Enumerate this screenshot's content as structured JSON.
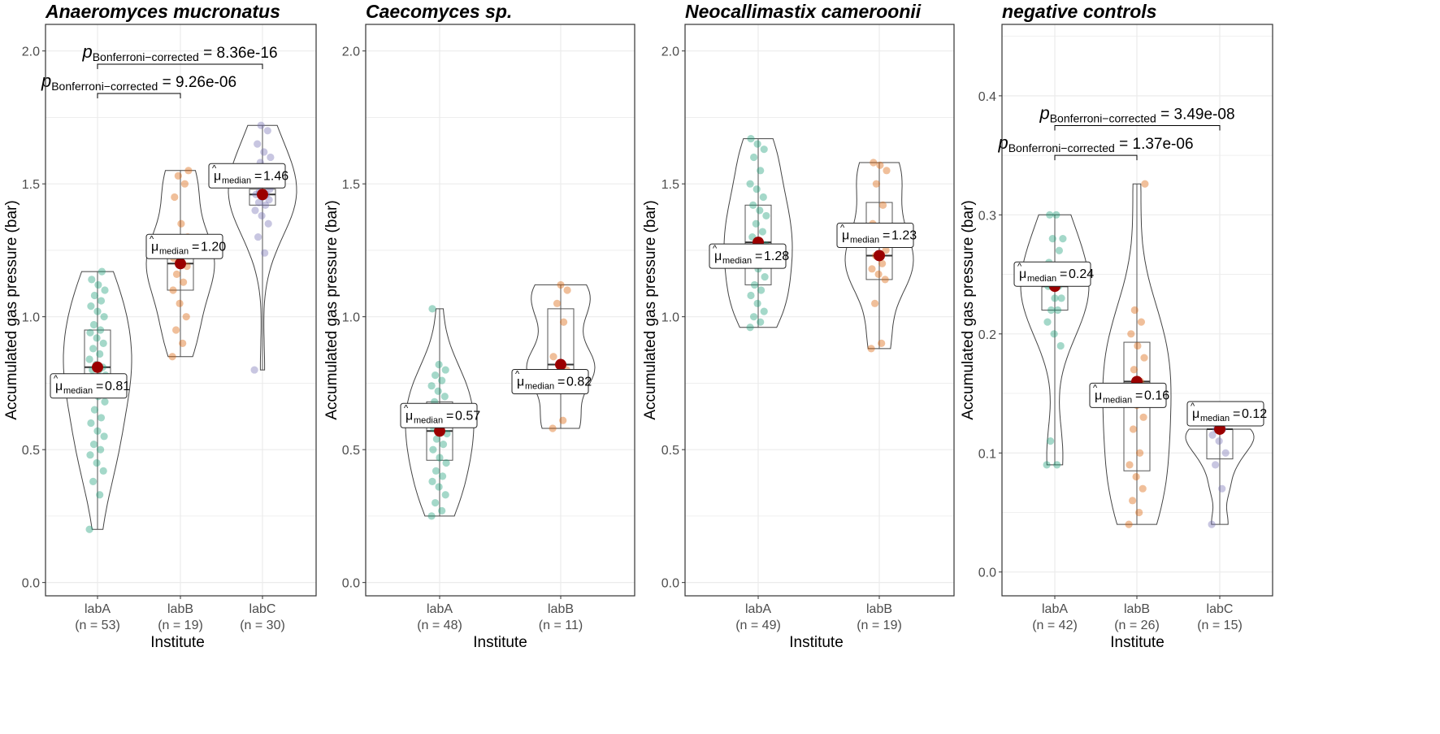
{
  "x_axis_title": "Institute",
  "y_axis_title": "Accumulated gas pressure (bar)",
  "pvalue_label": "Bonferroni−corrected",
  "median_symbol": "μ",
  "median_subscript": "median",
  "colors": {
    "labA": "#1b9e77",
    "labB": "#d95f02",
    "labC": "#7570b3",
    "median_point": "#9b0000",
    "grid": "#ebebeb",
    "axis_text": "#4d4d4d"
  },
  "chart_data": [
    {
      "type": "violin-box-jitter",
      "title": "Anaeromyces mucronatus",
      "ylim": [
        -0.05,
        2.1
      ],
      "yticks": [
        0.0,
        0.5,
        1.0,
        1.5,
        2.0
      ],
      "ytick_labels": [
        "0.0",
        "0.5",
        "1.0",
        "1.5",
        "2.0"
      ],
      "groups": [
        {
          "name": "labA",
          "n_label": "(n = 53)",
          "median": 0.81,
          "median_label": "0.81",
          "q1": 0.72,
          "q3": 0.95,
          "min": 0.2,
          "max": 1.17,
          "points": [
            0.2,
            0.33,
            0.38,
            0.42,
            0.45,
            0.48,
            0.5,
            0.52,
            0.55,
            0.57,
            0.6,
            0.62,
            0.65,
            0.68,
            0.7,
            0.72,
            0.74,
            0.76,
            0.78,
            0.8,
            0.8,
            0.81,
            0.82,
            0.84,
            0.86,
            0.88,
            0.9,
            0.92,
            0.94,
            0.95,
            0.97,
            1.0,
            1.02,
            1.04,
            1.06,
            1.08,
            1.1,
            1.12,
            1.14,
            1.17
          ]
        },
        {
          "name": "labB",
          "n_label": "(n = 19)",
          "median": 1.2,
          "median_label": "1.20",
          "q1": 1.1,
          "q3": 1.28,
          "min": 0.85,
          "max": 1.55,
          "points": [
            0.85,
            0.9,
            0.95,
            1.0,
            1.05,
            1.1,
            1.13,
            1.16,
            1.19,
            1.2,
            1.22,
            1.25,
            1.28,
            1.3,
            1.35,
            1.45,
            1.5,
            1.53,
            1.55
          ]
        },
        {
          "name": "labC",
          "n_label": "(n = 30)",
          "median": 1.46,
          "median_label": "1.46",
          "q1": 1.42,
          "q3": 1.48,
          "min": 0.8,
          "max": 1.72,
          "points": [
            0.8,
            1.24,
            1.3,
            1.35,
            1.38,
            1.4,
            1.42,
            1.43,
            1.44,
            1.45,
            1.46,
            1.46,
            1.47,
            1.48,
            1.5,
            1.52,
            1.55,
            1.58,
            1.6,
            1.62,
            1.65,
            1.7,
            1.72
          ]
        }
      ],
      "brackets": [
        {
          "from": "labA",
          "to": "labB",
          "y": 1.84,
          "p": "9.26e-06"
        },
        {
          "from": "labA",
          "to": "labC",
          "y": 1.95,
          "p": "8.36e-16"
        }
      ]
    },
    {
      "type": "violin-box-jitter",
      "title": "Caecomyces sp.",
      "ylim": [
        -0.05,
        2.1
      ],
      "yticks": [
        0.0,
        0.5,
        1.0,
        1.5,
        2.0
      ],
      "ytick_labels": [
        "0.0",
        "0.5",
        "1.0",
        "1.5",
        "2.0"
      ],
      "groups": [
        {
          "name": "labA",
          "n_label": "(n = 48)",
          "median": 0.57,
          "median_label": "0.57",
          "q1": 0.46,
          "q3": 0.68,
          "min": 0.25,
          "max": 1.03,
          "points": [
            0.25,
            0.27,
            0.3,
            0.33,
            0.36,
            0.38,
            0.4,
            0.42,
            0.45,
            0.47,
            0.5,
            0.52,
            0.54,
            0.56,
            0.57,
            0.58,
            0.6,
            0.62,
            0.64,
            0.66,
            0.68,
            0.7,
            0.72,
            0.74,
            0.76,
            0.78,
            0.8,
            0.82,
            1.03
          ]
        },
        {
          "name": "labB",
          "n_label": "(n = 11)",
          "median": 0.82,
          "median_label": "0.82",
          "q1": 0.75,
          "q3": 1.03,
          "min": 0.58,
          "max": 1.12,
          "points": [
            0.58,
            0.61,
            0.75,
            0.8,
            0.82,
            0.85,
            0.98,
            1.05,
            1.1,
            1.12
          ]
        }
      ],
      "brackets": []
    },
    {
      "type": "violin-box-jitter",
      "title": "Neocallimastix cameroonii",
      "ylim": [
        -0.05,
        2.1
      ],
      "yticks": [
        0.0,
        0.5,
        1.0,
        1.5,
        2.0
      ],
      "ytick_labels": [
        "0.0",
        "0.5",
        "1.0",
        "1.5",
        "2.0"
      ],
      "groups": [
        {
          "name": "labA",
          "n_label": "(n = 49)",
          "median": 1.28,
          "median_label": "1.28",
          "q1": 1.12,
          "q3": 1.42,
          "min": 0.96,
          "max": 1.67,
          "points": [
            0.96,
            0.98,
            1.0,
            1.02,
            1.05,
            1.08,
            1.1,
            1.12,
            1.15,
            1.18,
            1.2,
            1.22,
            1.25,
            1.27,
            1.28,
            1.3,
            1.32,
            1.35,
            1.38,
            1.4,
            1.42,
            1.45,
            1.48,
            1.5,
            1.55,
            1.6,
            1.63,
            1.65,
            1.67
          ]
        },
        {
          "name": "labB",
          "n_label": "(n = 19)",
          "median": 1.23,
          "median_label": "1.23",
          "q1": 1.14,
          "q3": 1.43,
          "min": 0.88,
          "max": 1.58,
          "points": [
            0.88,
            0.9,
            1.05,
            1.14,
            1.16,
            1.18,
            1.2,
            1.23,
            1.25,
            1.3,
            1.35,
            1.42,
            1.5,
            1.55,
            1.57,
            1.58
          ]
        }
      ],
      "brackets": []
    },
    {
      "type": "violin-box-jitter",
      "title": "negative controls",
      "ylim": [
        -0.02,
        0.46
      ],
      "yticks": [
        0.0,
        0.1,
        0.2,
        0.3,
        0.4
      ],
      "ytick_labels": [
        "0.0",
        "0.1",
        "0.2",
        "0.3",
        "0.4"
      ],
      "groups": [
        {
          "name": "labA",
          "n_label": "(n = 42)",
          "median": 0.24,
          "median_label": "0.24",
          "q1": 0.22,
          "q3": 0.25,
          "min": 0.09,
          "max": 0.3,
          "points": [
            0.09,
            0.09,
            0.11,
            0.19,
            0.2,
            0.21,
            0.22,
            0.22,
            0.23,
            0.23,
            0.24,
            0.24,
            0.24,
            0.25,
            0.25,
            0.26,
            0.27,
            0.28,
            0.28,
            0.3,
            0.3
          ]
        },
        {
          "name": "labB",
          "n_label": "(n = 26)",
          "median": 0.16,
          "median_label": "0.16",
          "q1": 0.085,
          "q3": 0.193,
          "min": 0.04,
          "max": 0.326,
          "points": [
            0.04,
            0.05,
            0.06,
            0.07,
            0.08,
            0.09,
            0.1,
            0.12,
            0.13,
            0.14,
            0.15,
            0.16,
            0.17,
            0.18,
            0.19,
            0.2,
            0.21,
            0.22,
            0.326
          ]
        },
        {
          "name": "labC",
          "n_label": "(n = 15)",
          "median": 0.12,
          "median_label": "0.12",
          "q1": 0.095,
          "q3": 0.12,
          "min": 0.04,
          "max": 0.12,
          "points": [
            0.04,
            0.07,
            0.09,
            0.1,
            0.11,
            0.115,
            0.12,
            0.12
          ]
        }
      ],
      "brackets": [
        {
          "from": "labA",
          "to": "labB",
          "y": 0.35,
          "p": "1.37e-06"
        },
        {
          "from": "labA",
          "to": "labC",
          "y": 0.375,
          "p": "3.49e-08"
        }
      ]
    }
  ]
}
